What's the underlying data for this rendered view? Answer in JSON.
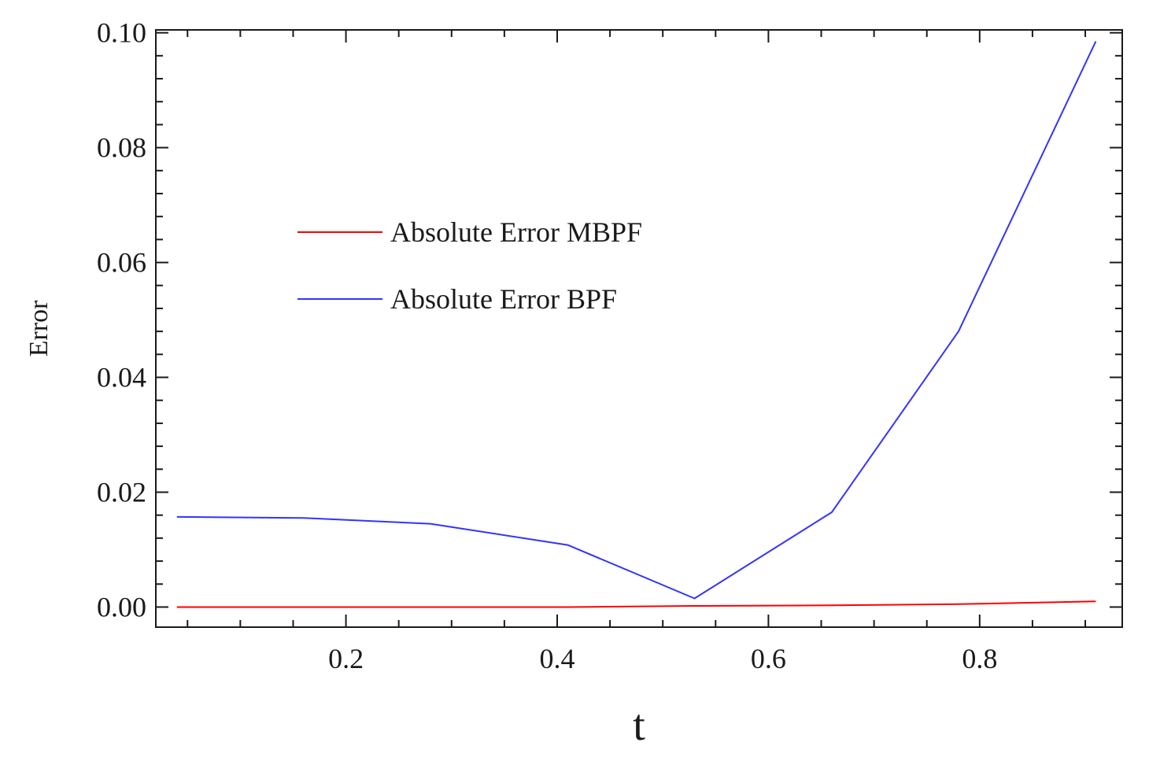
{
  "chart_data": {
    "type": "line",
    "xlabel": "t",
    "ylabel": "Error",
    "xlim": [
      0.02,
      0.935
    ],
    "ylim": [
      -0.0035,
      0.1005
    ],
    "xticks": [
      0.2,
      0.4,
      0.6,
      0.8
    ],
    "xtick_labels": [
      "0.2",
      "0.4",
      "0.6",
      "0.8"
    ],
    "yticks": [
      0.0,
      0.02,
      0.04,
      0.06,
      0.08,
      0.1
    ],
    "ytick_labels": [
      "0.00",
      "0.02",
      "0.04",
      "0.06",
      "0.08",
      "0.10"
    ],
    "grid": false,
    "legend_position": "upper-left-center",
    "series": [
      {
        "name": "Absolute Error MBPF",
        "color": "#ff0000",
        "x": [
          0.04,
          0.16,
          0.28,
          0.41,
          0.53,
          0.66,
          0.78,
          0.91
        ],
        "y": [
          0.0,
          0.0,
          0.0,
          0.0,
          0.0002,
          0.0003,
          0.0005,
          0.001
        ]
      },
      {
        "name": "Absolute Error BPF",
        "color": "#3333ff",
        "x": [
          0.04,
          0.16,
          0.28,
          0.41,
          0.53,
          0.66,
          0.78,
          0.91
        ],
        "y": [
          0.0157,
          0.0155,
          0.0145,
          0.0108,
          0.0015,
          0.0165,
          0.048,
          0.0985
        ]
      }
    ]
  }
}
